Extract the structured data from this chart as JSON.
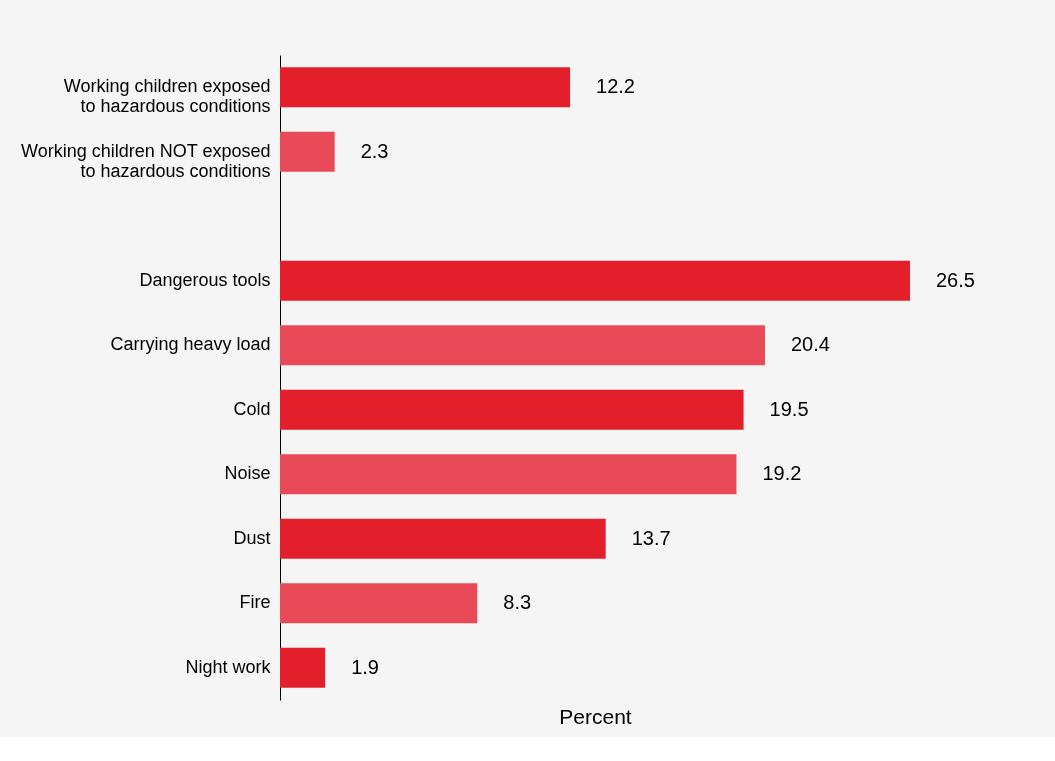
{
  "chart_data": {
    "type": "bar",
    "orientation": "horizontal",
    "xlabel": "Percent",
    "categories": [
      "Working children exposed\nto hazardous conditions",
      "Working children NOT exposed\nto hazardous conditions",
      null,
      "Dangerous tools",
      "Carrying heavy load",
      "Cold",
      "Noise",
      "Dust",
      "Fire",
      "Night work"
    ],
    "values": [
      12.2,
      2.3,
      null,
      26.5,
      20.4,
      19.5,
      19.2,
      13.7,
      8.3,
      1.9
    ],
    "colors": [
      "#e31f2c",
      "#e84b57",
      null,
      "#e31f2c",
      "#e84b57",
      "#e31f2c",
      "#e84b57",
      "#e31f2c",
      "#e84b57",
      "#e31f2c"
    ],
    "data_labels": true,
    "grid": false
  }
}
